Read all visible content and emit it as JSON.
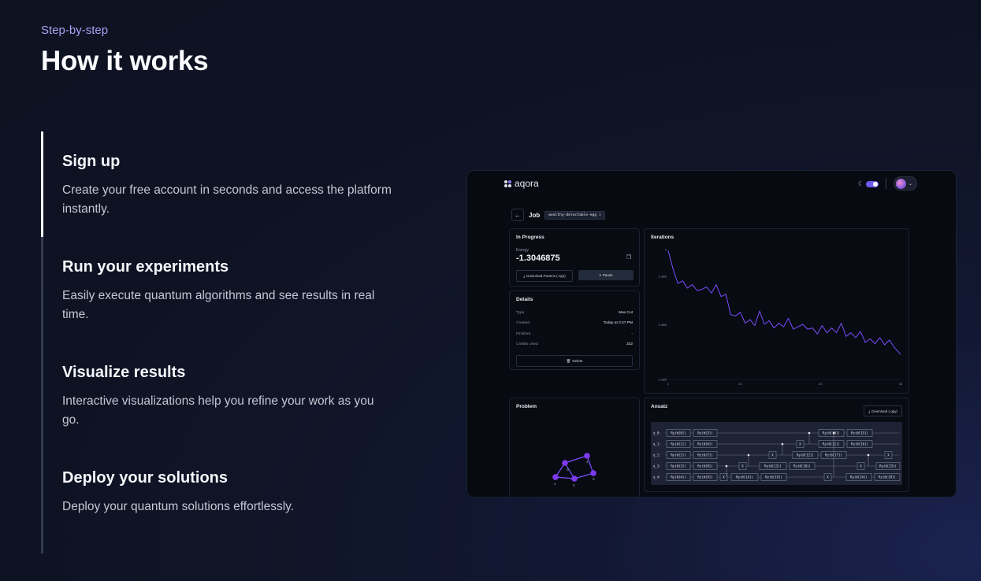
{
  "eyebrow": "Step-by-step",
  "heading": "How it works",
  "steps": [
    {
      "title": "Sign up",
      "description": "Create your free account in seconds and access the platform instantly.",
      "active": true
    },
    {
      "title": "Run your experiments",
      "description": "Easily execute quantum algorithms and see results in real time.",
      "active": false
    },
    {
      "title": "Visualize results",
      "description": "Interactive visualizations help you refine your work as you go.",
      "active": false
    },
    {
      "title": "Deploy your solutions",
      "description": "Deploy your quantum solutions effortlessly.",
      "active": false
    }
  ],
  "app": {
    "logo_text": "aqora",
    "job_label": "Job",
    "job_name": "wealthy-delectable-egg",
    "progress": {
      "title": "In Progress",
      "energy_label": "Energy",
      "energy_value": "-1.3046875",
      "download_label": "Download Params (.npy)",
      "pause_label": "Pause"
    },
    "details": {
      "title": "Details",
      "rows": [
        {
          "key": "Type",
          "value": "Max Cut"
        },
        {
          "key": "Created",
          "value": "Today at 2:47 PM"
        },
        {
          "key": "Finished",
          "value": "-"
        },
        {
          "key": "Credits Used",
          "value": "332"
        }
      ],
      "delete_label": "Delete"
    },
    "problem": {
      "title": "Problem",
      "node_labels": [
        "0",
        "4",
        "1",
        "2",
        "3"
      ]
    },
    "ansatz": {
      "title": "Ansatz",
      "download_label": "Download (.qpy)",
      "qubits": [
        "q_0:",
        "q_1:",
        "q_2:",
        "q_3:",
        "q_4:"
      ],
      "gates": [
        [
          "Ry(θ[0])",
          "Rz(θ[5])",
          "Ry(θ[10])",
          "Rz(θ[15])"
        ],
        [
          "Ry(θ[1])",
          "Rz(θ[6])",
          "X",
          "Ry(θ[11])",
          "Rz(θ[16])"
        ],
        [
          "Ry(θ[2])",
          "Rz(θ[7])",
          "X",
          "Ry(θ[12])",
          "Rz(θ[17])",
          "X"
        ],
        [
          "Ry(θ[3])",
          "Rz(θ[8])",
          "X",
          "Ry(θ[13])",
          "Rz(θ[18])",
          "X",
          "Ry(θ[23])"
        ],
        [
          "Ry(θ[4])",
          "Rz(θ[9])",
          "X",
          "Ry(θ[14])",
          "Rz(θ[19])",
          "X",
          "Ry(θ[24])",
          "Rz(θ[29])"
        ]
      ]
    },
    "accent_color": "#7c4dff"
  },
  "chart_data": {
    "type": "line",
    "title": "Iterations",
    "xlabel": "",
    "ylabel": "",
    "x_ticks": [
      "1",
      "10",
      "20",
      "30"
    ],
    "y_ticks": [
      "4",
      "2.885",
      "0.885",
      "-1.385"
    ],
    "xlim": [
      1,
      30
    ],
    "ylim": [
      -1.385,
      4
    ],
    "series": [
      {
        "color": "#7c4dff",
        "x": [
          1,
          1.6,
          2.2,
          2.8,
          3.4,
          4,
          4.6,
          5.2,
          5.8,
          6.4,
          7,
          7.6,
          8.2,
          8.8,
          9.4,
          10,
          10.6,
          11.2,
          11.8,
          12.4,
          13,
          13.6,
          14.2,
          14.8,
          15.4,
          16,
          16.6,
          17.2,
          17.8,
          18.4,
          19,
          19.6,
          20.2,
          20.8,
          21.4,
          22,
          22.6,
          23.2,
          23.8,
          24.4,
          25,
          25.6,
          26.2,
          26.8,
          27.4,
          28,
          28.6,
          29.2,
          30
        ],
        "y": [
          3.95,
          3.2,
          2.6,
          2.7,
          2.4,
          2.55,
          2.3,
          2.35,
          2.45,
          2.2,
          2.55,
          2.05,
          2.15,
          1.3,
          1.25,
          1.4,
          0.95,
          1.1,
          0.85,
          1.45,
          0.9,
          1.05,
          0.75,
          0.95,
          0.8,
          1.15,
          0.7,
          0.8,
          0.9,
          0.7,
          0.75,
          0.5,
          0.85,
          0.55,
          0.75,
          0.55,
          0.95,
          0.4,
          0.55,
          0.35,
          0.6,
          0.15,
          0.3,
          0.1,
          0.35,
          0.05,
          0.25,
          -0.05,
          -0.35
        ]
      }
    ]
  }
}
